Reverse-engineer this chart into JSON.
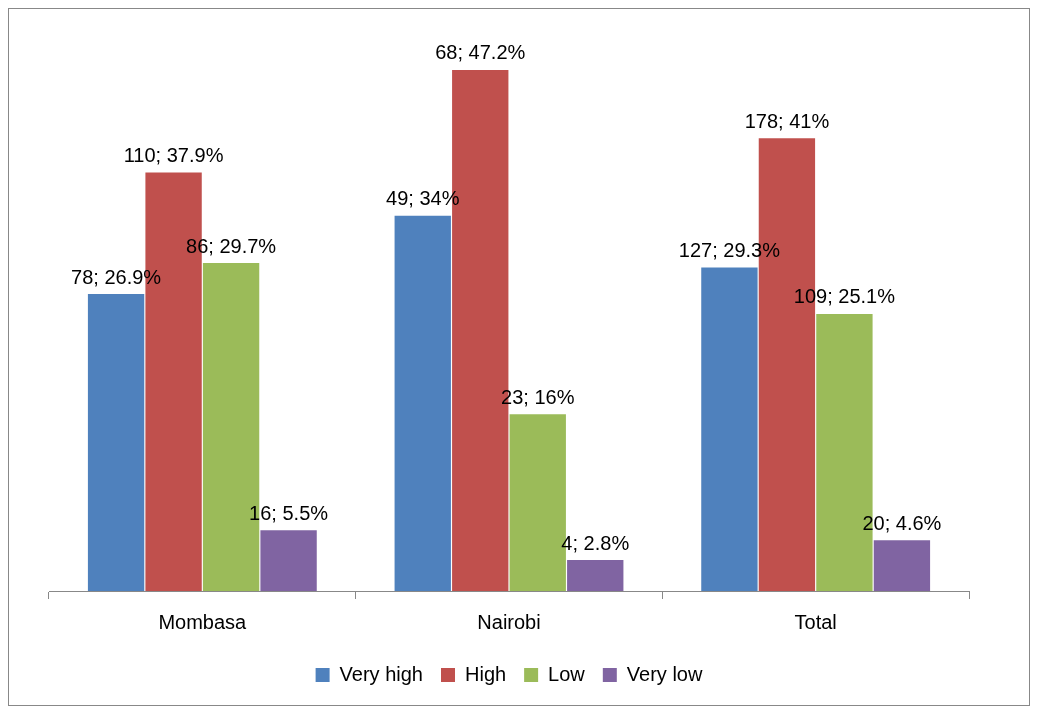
{
  "chart_data": {
    "type": "bar",
    "categories": [
      "Mombasa",
      "Nairobi",
      "Total"
    ],
    "series": [
      {
        "name": "Very high",
        "color": "#4f81bd",
        "values": [
          26.9,
          34,
          29.3
        ],
        "value_labels": [
          "78; 26.9%",
          "49; 34%",
          "127; 29.3%"
        ]
      },
      {
        "name": "High",
        "color": "#c0504d",
        "values": [
          37.9,
          47.2,
          41
        ],
        "value_labels": [
          "110; 37.9%",
          "68; 47.2%",
          "178; 41%"
        ]
      },
      {
        "name": "Low",
        "color": "#9bbb59",
        "values": [
          29.7,
          16,
          25.1
        ],
        "value_labels": [
          "86; 29.7%",
          "23; 16%",
          "109; 25.1%"
        ]
      },
      {
        "name": "Very low",
        "color": "#8064a2",
        "values": [
          5.5,
          2.8,
          4.6
        ],
        "value_labels": [
          "16; 5.5%",
          "4; 2.8%",
          "20; 4.6%"
        ]
      }
    ],
    "legend": "bottom",
    "grid": false,
    "tick_labels": "x"
  }
}
